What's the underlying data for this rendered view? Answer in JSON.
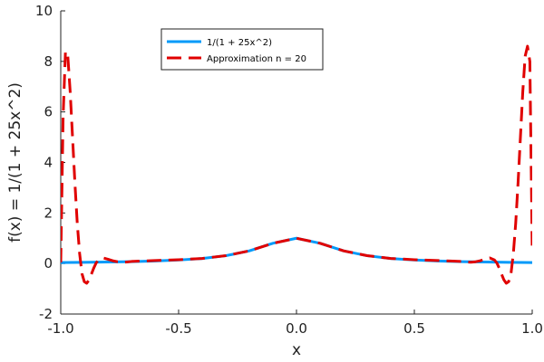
{
  "chart_data": {
    "type": "line",
    "xlabel": "x",
    "ylabel": "f(x) = 1/(1 + 25x^2)",
    "xlim": [
      -1.0,
      1.0
    ],
    "ylim": [
      -2,
      10
    ],
    "grid": false,
    "legend_position": "top-center",
    "x_ticks": [
      -1.0,
      -0.5,
      0.0,
      0.5,
      1.0
    ],
    "x_tick_labels": [
      "-1.0",
      "-0.5",
      "0.0",
      "0.5",
      "1.0"
    ],
    "y_ticks": [
      -2,
      0,
      2,
      4,
      6,
      8,
      10
    ],
    "y_tick_labels": [
      "-2",
      "0",
      "2",
      "4",
      "6",
      "8",
      "10"
    ],
    "series": [
      {
        "name": "1/(1 + 25x^2)",
        "style": "solid",
        "color": "#009AF9",
        "x": [
          -1.0,
          -0.9,
          -0.8,
          -0.7,
          -0.6,
          -0.5,
          -0.4,
          -0.3,
          -0.2,
          -0.1,
          0.0,
          0.1,
          0.2,
          0.3,
          0.4,
          0.5,
          0.6,
          0.7,
          0.8,
          0.9,
          1.0
        ],
        "y": [
          0.038,
          0.047,
          0.059,
          0.075,
          0.1,
          0.138,
          0.2,
          0.308,
          0.5,
          0.8,
          1.0,
          0.8,
          0.5,
          0.308,
          0.2,
          0.138,
          0.1,
          0.075,
          0.059,
          0.047,
          0.038
        ]
      },
      {
        "name": "Approximation n = 20",
        "style": "dashed",
        "color": "#E00000",
        "x": [
          -1.0,
          -0.99,
          -0.98,
          -0.97,
          -0.96,
          -0.95,
          -0.94,
          -0.93,
          -0.92,
          -0.91,
          -0.9,
          -0.89,
          -0.88,
          -0.87,
          -0.86,
          -0.85,
          -0.84,
          -0.82,
          -0.8,
          -0.78,
          -0.76,
          -0.74,
          -0.72,
          -0.7,
          -0.65,
          -0.6,
          -0.5,
          -0.4,
          -0.3,
          -0.2,
          -0.1,
          0.0,
          0.1,
          0.2,
          0.3,
          0.4,
          0.5,
          0.6,
          0.65,
          0.7,
          0.72,
          0.74,
          0.76,
          0.78,
          0.8,
          0.82,
          0.84,
          0.85,
          0.86,
          0.87,
          0.88,
          0.89,
          0.9,
          0.91,
          0.92,
          0.93,
          0.94,
          0.95,
          0.96,
          0.97,
          0.98,
          0.99,
          1.0
        ],
        "y": [
          0.04,
          5.8,
          8.4,
          8.2,
          6.8,
          5.0,
          3.2,
          1.6,
          0.4,
          -0.4,
          -0.72,
          -0.78,
          -0.65,
          -0.42,
          -0.18,
          0.02,
          0.14,
          0.22,
          0.17,
          0.11,
          0.07,
          0.05,
          0.06,
          0.08,
          0.1,
          0.12,
          0.15,
          0.2,
          0.31,
          0.5,
          0.8,
          1.0,
          0.8,
          0.5,
          0.31,
          0.2,
          0.15,
          0.12,
          0.1,
          0.08,
          0.06,
          0.05,
          0.07,
          0.11,
          0.17,
          0.22,
          0.14,
          0.02,
          -0.18,
          -0.42,
          -0.65,
          -0.78,
          -0.72,
          -0.4,
          0.4,
          1.6,
          3.2,
          5.0,
          6.8,
          8.2,
          8.6,
          8.0,
          0.6
        ]
      }
    ]
  }
}
